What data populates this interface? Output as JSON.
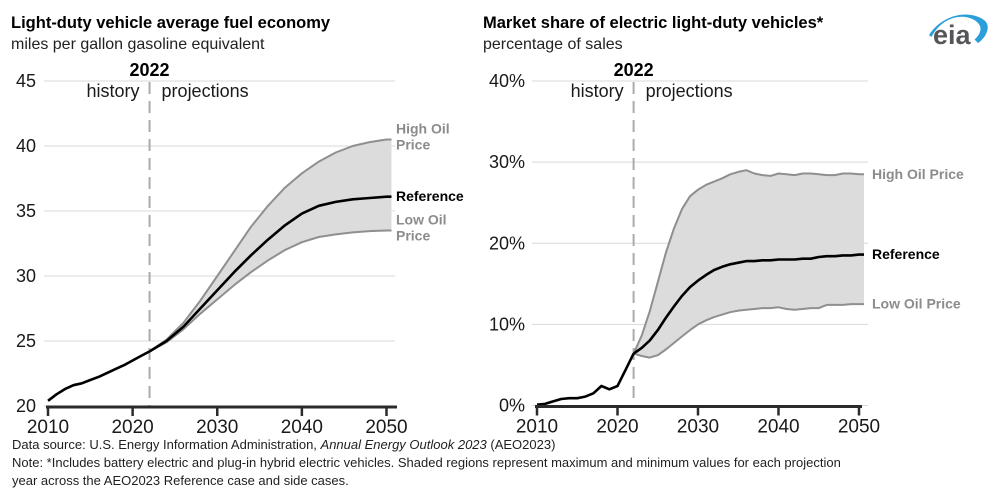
{
  "logo": {
    "text": "eia",
    "swoosh_color": "#2b9fd9",
    "text_color": "#54565a"
  },
  "colors": {
    "band_fill": "#dcdcdc",
    "band_edge": "#8f8f8f",
    "main_line": "#000000",
    "divider": "#ababab",
    "grid": "#d9d9d9",
    "axis": "#2b2b2b",
    "gray_label": "#8c8c8c"
  },
  "chart_data": [
    {
      "type": "line",
      "title": "Light-duty vehicle average fuel economy",
      "subtitle": "miles per gallon gasoline equivalent",
      "xlim": [
        2010,
        2050
      ],
      "ylim": [
        20,
        45
      ],
      "x_ticks": [
        2010,
        2020,
        2030,
        2040,
        2050
      ],
      "y_ticks": [
        20,
        25,
        30,
        35,
        40,
        45
      ],
      "y_tick_suffix": "",
      "grid": true,
      "divider": {
        "year": 2022,
        "label": "2022",
        "left_label": "history",
        "right_label": "projections"
      },
      "series": [
        {
          "name": "History",
          "role": "history",
          "x": [
            2010,
            2011,
            2012,
            2013,
            2014,
            2015,
            2016,
            2017,
            2018,
            2019,
            2020,
            2021,
            2022
          ],
          "values": [
            20.4,
            20.9,
            21.3,
            21.6,
            21.75,
            22.0,
            22.25,
            22.55,
            22.85,
            23.15,
            23.5,
            23.85,
            24.2
          ]
        },
        {
          "name": "Reference",
          "role": "reference",
          "label_lines": [
            "Reference"
          ],
          "x": [
            2022,
            2024,
            2026,
            2028,
            2030,
            2032,
            2034,
            2036,
            2038,
            2040,
            2042,
            2044,
            2046,
            2048,
            2050
          ],
          "values": [
            24.2,
            25.0,
            26.1,
            27.5,
            28.9,
            30.3,
            31.6,
            32.8,
            33.9,
            34.8,
            35.4,
            35.7,
            35.9,
            36.0,
            36.1
          ]
        },
        {
          "name": "High Oil Price",
          "role": "high",
          "label_lines": [
            "High Oil",
            "Price"
          ],
          "x": [
            2022,
            2024,
            2026,
            2028,
            2030,
            2032,
            2034,
            2036,
            2038,
            2040,
            2042,
            2044,
            2046,
            2048,
            2050
          ],
          "values": [
            24.2,
            25.1,
            26.4,
            28.1,
            30.0,
            31.9,
            33.8,
            35.4,
            36.8,
            37.9,
            38.8,
            39.5,
            40.0,
            40.3,
            40.5
          ]
        },
        {
          "name": "Low Oil Price",
          "role": "low",
          "label_lines": [
            "Low Oil",
            "Price"
          ],
          "x": [
            2022,
            2024,
            2026,
            2028,
            2030,
            2032,
            2034,
            2036,
            2038,
            2040,
            2042,
            2044,
            2046,
            2048,
            2050
          ],
          "values": [
            24.2,
            24.9,
            25.9,
            27.1,
            28.2,
            29.3,
            30.3,
            31.2,
            32.0,
            32.6,
            33.0,
            33.2,
            33.35,
            33.45,
            33.5
          ]
        }
      ]
    },
    {
      "type": "line",
      "title": "Market share of electric light-duty vehicles*",
      "subtitle": "percentage of sales",
      "xlim": [
        2010,
        2050
      ],
      "ylim": [
        0,
        40
      ],
      "x_ticks": [
        2010,
        2020,
        2030,
        2040,
        2050
      ],
      "y_ticks": [
        0,
        10,
        20,
        30,
        40
      ],
      "y_tick_suffix": "%",
      "grid": true,
      "divider": {
        "year": 2022,
        "label": "2022",
        "left_label": "history",
        "right_label": "projections"
      },
      "series": [
        {
          "name": "History",
          "role": "history",
          "x": [
            2010,
            2011,
            2012,
            2013,
            2014,
            2015,
            2016,
            2017,
            2018,
            2019,
            2020,
            2021,
            2022
          ],
          "values": [
            0.1,
            0.2,
            0.5,
            0.8,
            0.9,
            0.9,
            1.1,
            1.5,
            2.4,
            2.0,
            2.4,
            4.4,
            6.4
          ]
        },
        {
          "name": "Reference",
          "role": "reference",
          "label_lines": [
            "Reference"
          ],
          "x": [
            2022,
            2023,
            2024,
            2025,
            2026,
            2027,
            2028,
            2029,
            2030,
            2031,
            2032,
            2033,
            2034,
            2035,
            2036,
            2037,
            2038,
            2039,
            2040,
            2041,
            2042,
            2043,
            2044,
            2045,
            2046,
            2047,
            2048,
            2049,
            2050
          ],
          "values": [
            6.4,
            7.1,
            8.0,
            9.3,
            10.8,
            12.2,
            13.5,
            14.6,
            15.4,
            16.1,
            16.7,
            17.1,
            17.4,
            17.6,
            17.8,
            17.8,
            17.9,
            17.9,
            18.0,
            18.0,
            18.0,
            18.1,
            18.1,
            18.3,
            18.4,
            18.4,
            18.5,
            18.5,
            18.6
          ]
        },
        {
          "name": "High Oil Price",
          "role": "high",
          "label_lines": [
            "High Oil Price"
          ],
          "x": [
            2022,
            2023,
            2024,
            2025,
            2026,
            2027,
            2028,
            2029,
            2030,
            2031,
            2032,
            2033,
            2034,
            2035,
            2036,
            2037,
            2038,
            2039,
            2040,
            2041,
            2042,
            2043,
            2044,
            2045,
            2046,
            2047,
            2048,
            2049,
            2050
          ],
          "values": [
            6.4,
            8.6,
            11.6,
            15.2,
            18.8,
            21.8,
            24.2,
            25.8,
            26.6,
            27.2,
            27.6,
            28.0,
            28.5,
            28.8,
            29.0,
            28.6,
            28.4,
            28.3,
            28.6,
            28.5,
            28.4,
            28.6,
            28.6,
            28.5,
            28.4,
            28.4,
            28.6,
            28.6,
            28.5
          ]
        },
        {
          "name": "Low Oil Price",
          "role": "low",
          "label_lines": [
            "Low Oil Price"
          ],
          "x": [
            2022,
            2023,
            2024,
            2025,
            2026,
            2027,
            2028,
            2029,
            2030,
            2031,
            2032,
            2033,
            2034,
            2035,
            2036,
            2037,
            2038,
            2039,
            2040,
            2041,
            2042,
            2043,
            2044,
            2045,
            2046,
            2047,
            2048,
            2049,
            2050
          ],
          "values": [
            6.4,
            6.1,
            5.9,
            6.2,
            6.9,
            7.7,
            8.5,
            9.3,
            10.0,
            10.5,
            10.9,
            11.2,
            11.5,
            11.7,
            11.8,
            11.9,
            12.0,
            12.0,
            12.1,
            11.9,
            11.8,
            11.9,
            12.0,
            12.0,
            12.4,
            12.4,
            12.4,
            12.5,
            12.5
          ]
        }
      ]
    }
  ],
  "footer": {
    "data_source_prefix": "Data source: U.S. Energy Information Administration, ",
    "data_source_italic": "Annual Energy Outlook 2023",
    "data_source_suffix": " (AEO2023)",
    "note_line1": "Note: *Includes battery electric and plug-in hybrid electric vehicles. Shaded regions represent maximum and minimum values for each projection",
    "note_line2": "year across the AEO2023 Reference case and side cases."
  }
}
